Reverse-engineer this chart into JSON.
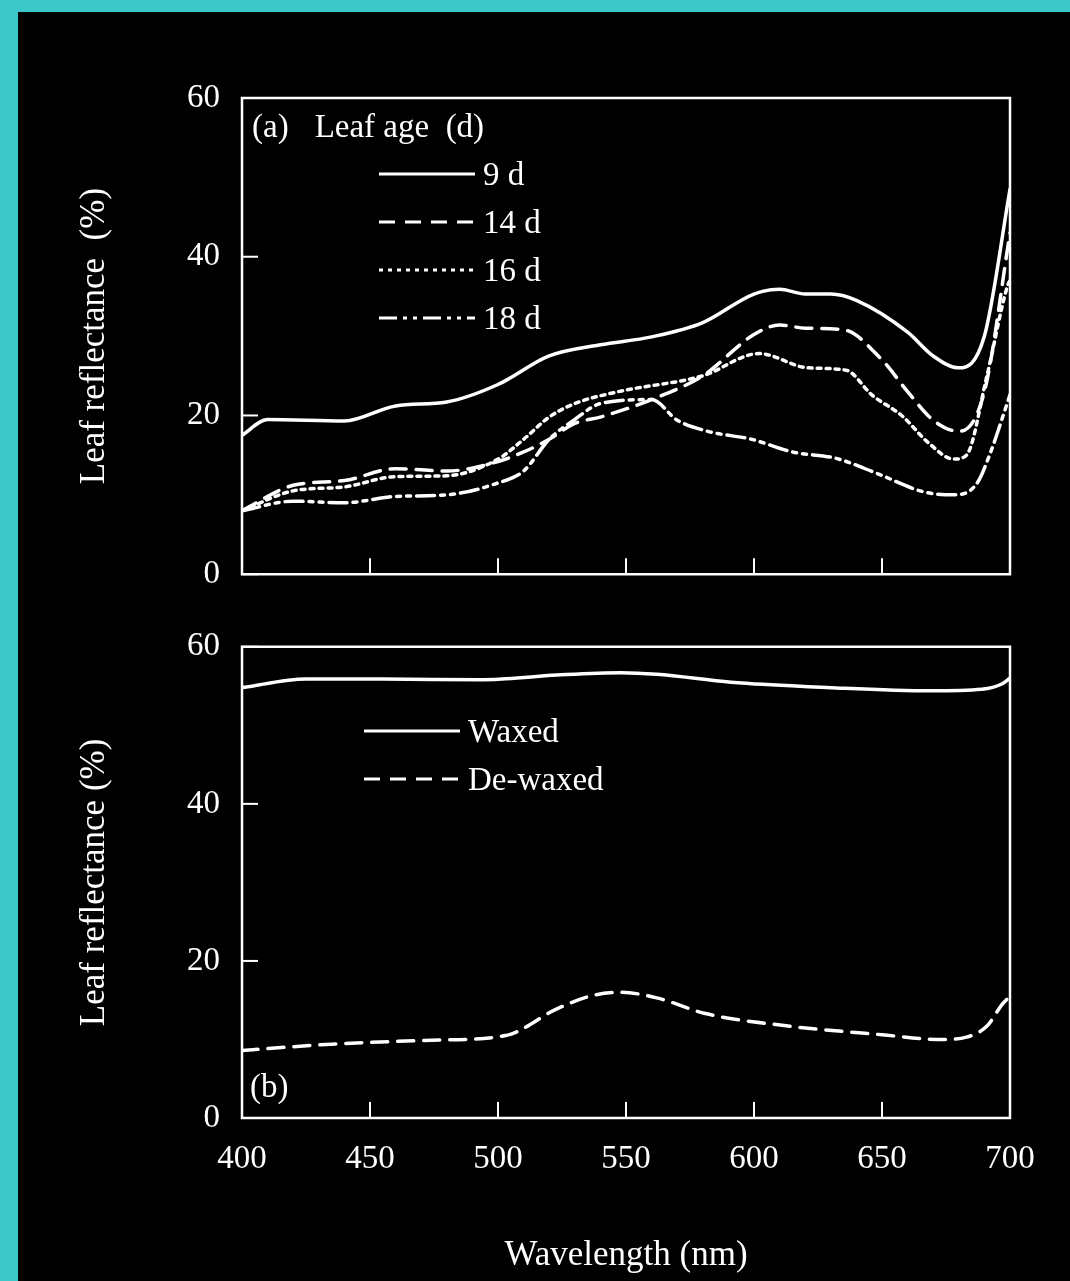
{
  "chart_data": [
    {
      "type": "line",
      "ylabel": "Leaf reflectance  (%)",
      "legend_title": "Leaf age  (d)",
      "annotations": [
        "(a)"
      ],
      "legend": "top left",
      "grid": false,
      "tick_labels": "y",
      "xlim": [
        400,
        700
      ],
      "xticks": [
        400,
        450,
        500,
        550,
        600,
        650,
        700
      ],
      "ylim": [
        0,
        60
      ],
      "yticks": [
        0,
        20,
        40,
        60
      ],
      "series": [
        {
          "name": "9 d",
          "color": "#ffffff",
          "line_style": "solid",
          "x": [
            400,
            410,
            440,
            460,
            480,
            500,
            520,
            540,
            560,
            580,
            600,
            610,
            620,
            630,
            640,
            660,
            670,
            680,
            690,
            700
          ],
          "values": [
            17.5,
            19.5,
            19.3,
            21.2,
            21.7,
            23.9,
            27.5,
            28.9,
            29.9,
            31.7,
            35.3,
            35.9,
            35.3,
            35.3,
            34.5,
            30.5,
            27.5,
            26,
            30,
            48.5
          ]
        },
        {
          "name": "14 d",
          "color": "#ffffff",
          "line_style": "dashed",
          "x": [
            400,
            420,
            440,
            460,
            480,
            500,
            510,
            520,
            530,
            540,
            560,
            580,
            600,
            610,
            620,
            635,
            650,
            660,
            670,
            680,
            690,
            700
          ],
          "values": [
            8,
            11.2,
            11.8,
            13.3,
            13,
            14.2,
            15.4,
            17,
            19,
            19.8,
            22,
            25,
            30.2,
            31.4,
            31,
            30.8,
            27,
            23,
            19.4,
            18,
            23,
            43
          ]
        },
        {
          "name": "16 d",
          "color": "#ffffff",
          "line_style": "dotted",
          "x": [
            400,
            420,
            440,
            460,
            480,
            500,
            510,
            520,
            530,
            547,
            580,
            602,
            621,
            636,
            646,
            658,
            668,
            678,
            683,
            691,
            699,
            700
          ],
          "values": [
            8,
            10.5,
            11,
            12.3,
            12.4,
            14.5,
            17,
            19.8,
            21.5,
            23,
            25,
            27.8,
            26,
            25.7,
            22.6,
            19.9,
            16.6,
            14.5,
            15,
            25,
            36.3,
            37
          ]
        },
        {
          "name": "18 d",
          "color": "#ffffff",
          "line_style": "dashdot",
          "x": [
            400,
            420,
            440,
            460,
            480,
            500,
            510,
            520,
            530,
            540,
            560,
            570,
            582,
            599,
            615,
            632,
            648,
            666,
            678,
            687,
            692,
            700
          ],
          "values": [
            8,
            9.2,
            9,
            9.8,
            10,
            11.5,
            13,
            17,
            19.5,
            21.5,
            22,
            19.4,
            18,
            17,
            15.4,
            14.6,
            12.7,
            10.4,
            10,
            11.4,
            15,
            22.6
          ]
        }
      ]
    },
    {
      "type": "line",
      "ylabel": "Leaf reflectance (%)",
      "xlabel": "Wavelength (nm)",
      "annotations": [
        "(b)"
      ],
      "legend": "top left",
      "grid": false,
      "xlim": [
        400,
        700
      ],
      "xticks": [
        400,
        450,
        500,
        550,
        600,
        650,
        700
      ],
      "ylim": [
        0,
        60
      ],
      "yticks": [
        0,
        20,
        40,
        60
      ],
      "series": [
        {
          "name": "Waxed",
          "color": "#ffffff",
          "line_style": "solid",
          "x": [
            400,
            425,
            455,
            494,
            523,
            548,
            562,
            591,
            630,
            669,
            689,
            697,
            700
          ],
          "values": [
            54.8,
            55.9,
            55.9,
            55.8,
            56.4,
            56.7,
            56.5,
            55.5,
            54.8,
            54.4,
            54.6,
            55.3,
            56
          ]
        },
        {
          "name": "De-waxed",
          "color": "#ffffff",
          "line_style": "dashed",
          "x": [
            400,
            435,
            474,
            503,
            523,
            537,
            548,
            562,
            581,
            611,
            650,
            673,
            683,
            691,
            697,
            700
          ],
          "values": [
            8.6,
            9.4,
            9.9,
            10.5,
            13.9,
            15.6,
            16,
            15.3,
            13.3,
            11.8,
            10.6,
            10,
            10.3,
            11.7,
            14.5,
            15.5
          ]
        }
      ]
    }
  ]
}
